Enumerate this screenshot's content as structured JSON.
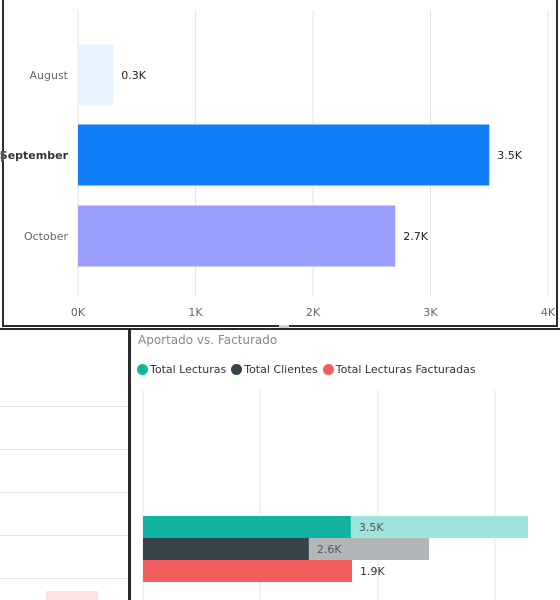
{
  "chart_data": [
    {
      "type": "bar",
      "orientation": "horizontal",
      "categories": [
        "August",
        "September",
        "October"
      ],
      "values": [
        0.3,
        3.5,
        2.7
      ],
      "data_labels": [
        "0.3K",
        "3.5K",
        "2.7K"
      ],
      "selected_category": "September",
      "xlim": [
        0,
        4
      ],
      "x_ticks": [
        "0K",
        "1K",
        "2K",
        "3K",
        "4K"
      ],
      "grid": true,
      "colors": [
        "#e8f4fd",
        "#0d7ef7",
        "#9b9efa"
      ]
    },
    {
      "type": "bar",
      "orientation": "horizontal",
      "title": "Aportado vs. Facturado",
      "legend_position": "top-left",
      "series": [
        {
          "name": "Total Lecturas",
          "values": [
            3.5
          ],
          "data_label": "3.5K",
          "color": "#13b3a4",
          "highlight_fraction": 0.54
        },
        {
          "name": "Total Clientes",
          "values": [
            2.6
          ],
          "data_label": "2.6K",
          "color": "#36434a",
          "highlight_fraction": 0.58
        },
        {
          "name": "Total Lecturas Facturadas",
          "values": [
            1.9
          ],
          "data_label": "1.9K",
          "color": "#f45d5d",
          "highlight_fraction": 1.0
        }
      ],
      "x_max": 3.5,
      "grid": true
    }
  ]
}
